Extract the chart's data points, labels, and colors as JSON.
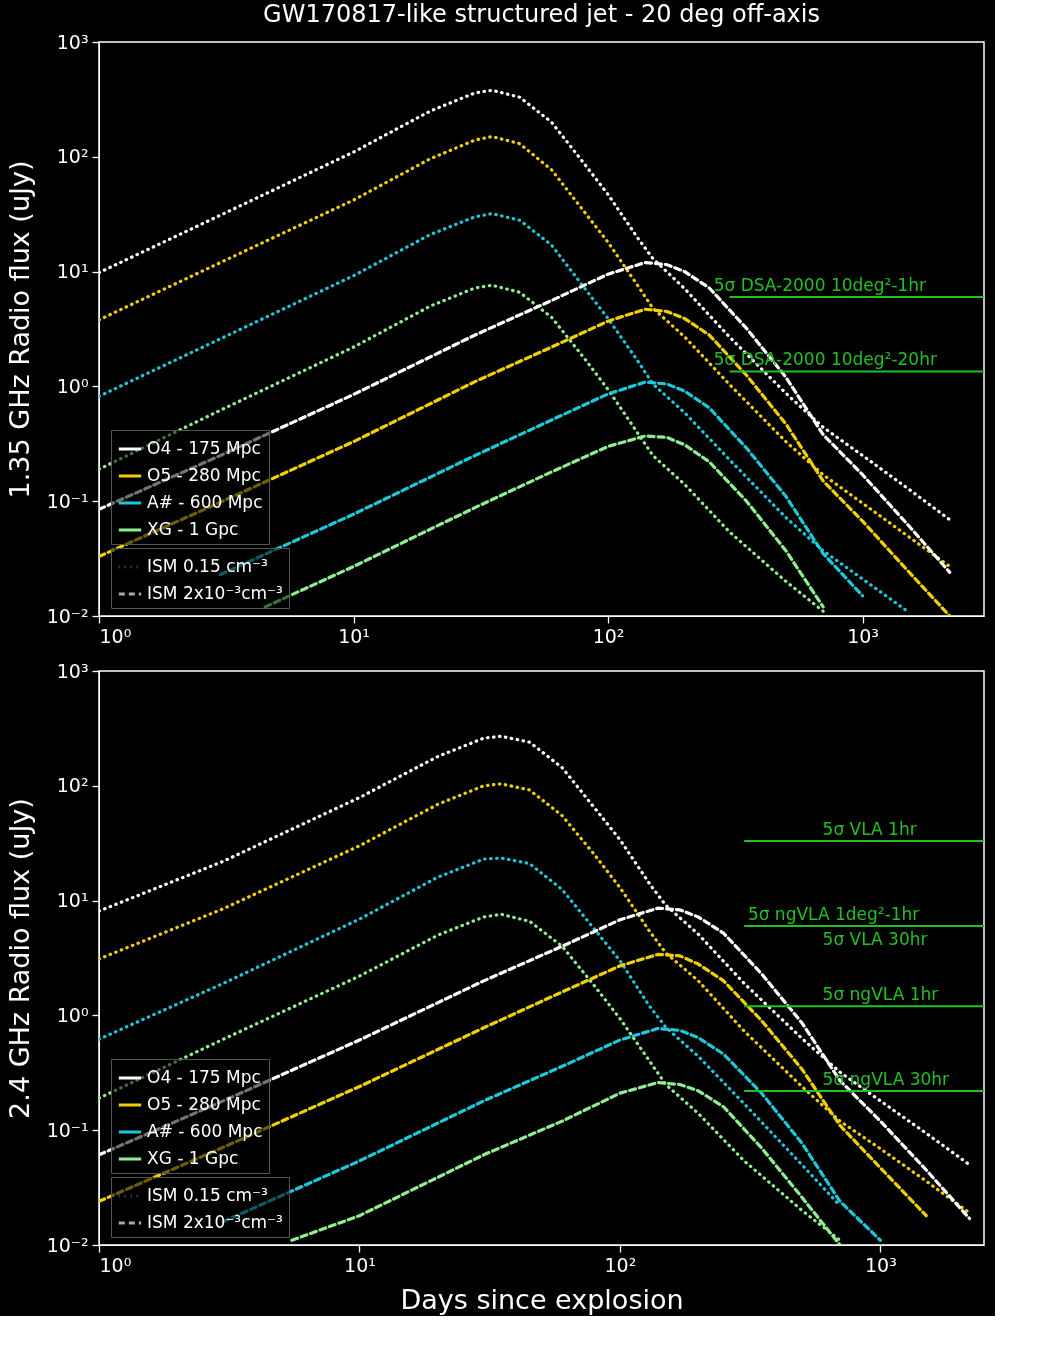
{
  "chart_data": [
    {
      "type": "line",
      "title": "GW170817-like structured jet - 20 deg off-axis",
      "ylabel": "1.35 GHz Radio flux (uJy)",
      "log": "xy",
      "grid": false,
      "legend": "bottom left",
      "xlim": [
        1,
        3000
      ],
      "ylim": [
        0.01,
        1000
      ],
      "xticks": [
        {
          "value": 1,
          "label": "10⁰"
        },
        {
          "value": 10,
          "label": "10¹"
        },
        {
          "value": 100,
          "label": "10²"
        },
        {
          "value": 1000,
          "label": "10³"
        }
      ],
      "yticks": [
        {
          "value": 0.01,
          "label": "10⁻²"
        },
        {
          "value": 0.1,
          "label": "10⁻¹"
        },
        {
          "value": 1,
          "label": "10⁰"
        },
        {
          "value": 10,
          "label": "10¹"
        },
        {
          "value": 100,
          "label": "10²"
        },
        {
          "value": 1000,
          "label": "10³"
        }
      ],
      "series": [
        {
          "name": "O4 - 175 Mpc",
          "color": "#ffffff",
          "line_style": "dotted",
          "x": [
            1,
            3,
            10,
            20,
            30,
            35,
            45,
            60,
            80,
            100,
            130,
            150,
            200,
            300,
            500,
            700,
            1000,
            1500,
            2200
          ],
          "values": [
            9.8,
            31,
            110,
            250,
            360,
            380,
            330,
            200,
            89,
            47,
            20,
            13,
            7.1,
            2.7,
            0.87,
            0.44,
            0.25,
            0.13,
            0.069
          ]
        },
        {
          "name": "O5 - 280 Mpc",
          "color": "#f2d000",
          "line_style": "dotted",
          "x": [
            1,
            3,
            10,
            20,
            30,
            35,
            45,
            60,
            80,
            100,
            130,
            150,
            200,
            300,
            500,
            700,
            1000,
            1500,
            2200
          ],
          "values": [
            3.8,
            12,
            42,
            96,
            140,
            150,
            130,
            77,
            34,
            18,
            7.7,
            4.8,
            2.7,
            1.04,
            0.33,
            0.17,
            0.096,
            0.05,
            0.027
          ]
        },
        {
          "name": "A# - 600 Mpc",
          "color": "#1ec8d8",
          "line_style": "dotted",
          "x": [
            1,
            3,
            10,
            20,
            30,
            35,
            45,
            60,
            80,
            100,
            130,
            150,
            200,
            300,
            500,
            700,
            1000,
            1500
          ],
          "values": [
            0.82,
            2.6,
            9.2,
            21,
            30,
            32,
            28,
            17,
            7.4,
            3.9,
            1.7,
            1.05,
            0.59,
            0.23,
            0.072,
            0.037,
            0.021,
            0.011
          ]
        },
        {
          "name": "XG - 1 Gpc",
          "color": "#90ee90",
          "line_style": "dotted",
          "x": [
            1,
            3,
            10,
            20,
            30,
            35,
            45,
            60,
            80,
            100,
            130,
            150,
            200,
            300,
            500,
            700
          ],
          "values": [
            0.19,
            0.62,
            2.2,
            5.0,
            7.2,
            7.6,
            6.6,
            4.0,
            1.8,
            0.94,
            0.4,
            0.25,
            0.14,
            0.054,
            0.02,
            0.011
          ]
        },
        {
          "name": "O4 - 175 Mpc",
          "color": "#ffffff",
          "line_style": "dashed",
          "x": [
            1,
            3,
            10,
            30,
            60,
            100,
            140,
            170,
            200,
            250,
            350,
            500,
            700,
            1000,
            1500,
            2200
          ],
          "values": [
            0.085,
            0.25,
            0.85,
            2.8,
            5.6,
            9.5,
            12,
            11.5,
            10,
            7.2,
            3.2,
            1.2,
            0.38,
            0.17,
            0.063,
            0.024
          ]
        },
        {
          "name": "O5 - 280 Mpc",
          "color": "#f2d000",
          "line_style": "dashed",
          "x": [
            1,
            3,
            10,
            30,
            60,
            100,
            140,
            170,
            200,
            250,
            350,
            500,
            700,
            1000,
            1500,
            2200
          ],
          "values": [
            0.033,
            0.098,
            0.33,
            1.1,
            2.2,
            3.7,
            4.7,
            4.5,
            3.9,
            2.8,
            1.25,
            0.47,
            0.15,
            0.067,
            0.025,
            0.01
          ]
        },
        {
          "name": "A# - 600 Mpc",
          "color": "#1ec8d8",
          "line_style": "dashed",
          "x": [
            3,
            10,
            30,
            60,
            100,
            140,
            170,
            200,
            250,
            350,
            500,
            700,
            1000
          ],
          "values": [
            0.023,
            0.077,
            0.25,
            0.51,
            0.86,
            1.09,
            1.05,
            0.91,
            0.65,
            0.29,
            0.11,
            0.035,
            0.015
          ]
        },
        {
          "name": "XG - 1 Gpc",
          "color": "#90ee90",
          "line_style": "dashed",
          "x": [
            4.5,
            10,
            30,
            60,
            100,
            140,
            170,
            200,
            250,
            350,
            500,
            700
          ],
          "values": [
            0.012,
            0.027,
            0.088,
            0.18,
            0.3,
            0.37,
            0.36,
            0.31,
            0.22,
            0.1,
            0.037,
            0.012
          ]
        },
        {
          "name": "ISM 0.15 cm⁻³",
          "color": "#aaaaaa",
          "line_style": "dotted"
        },
        {
          "name": "ISM 2x10⁻³cm⁻³",
          "color": "#aaaaaa",
          "line_style": "dashed"
        },
        {
          "color": "#22c022",
          "line_style": "solid",
          "x": [
            300,
            3000
          ],
          "values": [
            6.0,
            6.0
          ]
        },
        {
          "color": "#22c022",
          "line_style": "solid",
          "x": [
            300,
            3000
          ],
          "values": [
            1.35,
            1.35
          ]
        }
      ],
      "annotations": [
        {
          "text": "5σ DSA-2000 10deg²-1hr",
          "x": 260,
          "y": 6.0
        },
        {
          "text": "5σ DSA-2000 10deg²-20hr",
          "x": 260,
          "y": 1.35
        }
      ]
    },
    {
      "type": "line",
      "xlabel": "Days since explosion",
      "ylabel": "2.4 GHz Radio flux (uJy)",
      "log": "xy",
      "grid": false,
      "legend": "bottom left",
      "xlim": [
        1,
        2500
      ],
      "ylim": [
        0.01,
        1000
      ],
      "xticks": [
        {
          "value": 1,
          "label": "10⁰"
        },
        {
          "value": 10,
          "label": "10¹"
        },
        {
          "value": 100,
          "label": "10²"
        },
        {
          "value": 1000,
          "label": "10³"
        }
      ],
      "yticks": [
        {
          "value": 0.01,
          "label": "10⁻²"
        },
        {
          "value": 0.1,
          "label": "10⁻¹"
        },
        {
          "value": 1,
          "label": "10⁰"
        },
        {
          "value": 10,
          "label": "10¹"
        },
        {
          "value": 100,
          "label": "10²"
        },
        {
          "value": 1000,
          "label": "10³"
        }
      ],
      "series": [
        {
          "name": "O4 - 175 Mpc",
          "color": "#ffffff",
          "line_style": "dotted",
          "x": [
            1,
            3,
            10,
            20,
            30,
            35,
            45,
            60,
            80,
            100,
            130,
            150,
            200,
            300,
            500,
            700,
            1000,
            1500,
            2200
          ],
          "values": [
            8.1,
            22,
            79,
            180,
            260,
            270,
            240,
            144,
            64,
            34,
            14,
            9.1,
            5.1,
            1.9,
            0.63,
            0.32,
            0.18,
            0.094,
            0.05
          ]
        },
        {
          "name": "O5 - 280 Mpc",
          "color": "#f2d000",
          "line_style": "dotted",
          "x": [
            1,
            3,
            10,
            20,
            30,
            35,
            45,
            60,
            80,
            100,
            130,
            150,
            200,
            300,
            500,
            700,
            1000,
            1500,
            2200
          ],
          "values": [
            3.1,
            8.5,
            30,
            69,
            100,
            104,
            92,
            55,
            25,
            13,
            5.4,
            3.5,
            2.0,
            0.73,
            0.24,
            0.12,
            0.069,
            0.036,
            0.019
          ]
        },
        {
          "name": "A# - 600 Mpc",
          "color": "#1ec8d8",
          "line_style": "dotted",
          "x": [
            1,
            3,
            10,
            20,
            30,
            35,
            45,
            60,
            80,
            100,
            130,
            150,
            200,
            300,
            500,
            700
          ],
          "values": [
            0.62,
            1.9,
            6.9,
            16,
            23,
            23.5,
            21,
            12.5,
            5.6,
            3.0,
            1.2,
            0.79,
            0.44,
            0.17,
            0.05,
            0.022
          ]
        },
        {
          "name": "XG - 1 Gpc",
          "color": "#90ee90",
          "line_style": "dotted",
          "x": [
            1,
            3,
            10,
            20,
            30,
            35,
            45,
            60,
            80,
            100,
            130,
            150,
            200,
            300,
            500,
            700
          ],
          "values": [
            0.19,
            0.62,
            2.2,
            5.0,
            7.2,
            7.6,
            6.6,
            4.0,
            1.8,
            0.94,
            0.4,
            0.25,
            0.14,
            0.054,
            0.02,
            0.011
          ]
        },
        {
          "name": "O4 - 175 Mpc",
          "color": "#ffffff",
          "line_style": "dashed",
          "x": [
            1,
            3,
            10,
            30,
            60,
            100,
            140,
            170,
            200,
            250,
            350,
            500,
            700,
            1000,
            1500,
            2200
          ],
          "values": [
            0.061,
            0.18,
            0.61,
            2.0,
            4.0,
            6.8,
            8.6,
            8.3,
            7.2,
            5.2,
            2.3,
            0.86,
            0.27,
            0.12,
            0.045,
            0.017
          ]
        },
        {
          "name": "O5 - 280 Mpc",
          "color": "#f2d000",
          "line_style": "dashed",
          "x": [
            1,
            3,
            10,
            30,
            60,
            100,
            140,
            170,
            200,
            250,
            350,
            500,
            700,
            1000,
            1500
          ],
          "values": [
            0.024,
            0.071,
            0.24,
            0.78,
            1.6,
            2.7,
            3.4,
            3.3,
            2.8,
            2.0,
            0.9,
            0.34,
            0.11,
            0.047,
            0.018
          ]
        },
        {
          "name": "A# - 600 Mpc",
          "color": "#1ec8d8",
          "line_style": "dashed",
          "x": [
            3,
            10,
            30,
            60,
            100,
            140,
            170,
            200,
            250,
            350,
            500,
            700,
            1000
          ],
          "values": [
            0.016,
            0.054,
            0.18,
            0.36,
            0.61,
            0.77,
            0.74,
            0.64,
            0.46,
            0.21,
            0.077,
            0.024,
            0.011
          ]
        },
        {
          "name": "XG - 1 Gpc",
          "color": "#90ee90",
          "line_style": "dashed",
          "x": [
            5.5,
            10,
            30,
            60,
            100,
            140,
            170,
            200,
            250,
            350,
            500,
            700
          ],
          "values": [
            0.011,
            0.018,
            0.061,
            0.12,
            0.21,
            0.26,
            0.25,
            0.22,
            0.16,
            0.07,
            0.026,
            0.01
          ]
        },
        {
          "name": "ISM 0.15 cm⁻³",
          "color": "#aaaaaa",
          "line_style": "dotted"
        },
        {
          "name": "ISM 2x10⁻³cm⁻³",
          "color": "#aaaaaa",
          "line_style": "dashed"
        },
        {
          "color": "#22c022",
          "line_style": "solid",
          "x": [
            300,
            2500
          ],
          "values": [
            33,
            33
          ]
        },
        {
          "color": "#22c022",
          "line_style": "solid",
          "x": [
            300,
            2500
          ],
          "values": [
            6.0,
            6.0
          ]
        },
        {
          "color": "#22c022",
          "line_style": "solid",
          "x": [
            300,
            2500
          ],
          "values": [
            1.2,
            1.2
          ]
        },
        {
          "color": "#22c022",
          "line_style": "solid",
          "x": [
            300,
            2500
          ],
          "values": [
            0.22,
            0.22
          ]
        }
      ],
      "annotations": [
        {
          "text": "5σ VLA 1hr",
          "x": 600,
          "y": 33
        },
        {
          "text": "5σ ngVLA 1deg²-1hr",
          "x": 310,
          "y": 6.0
        },
        {
          "text": "5σ VLA 30hr",
          "x": 600,
          "y": 6.0
        },
        {
          "text": "5σ ngVLA 1hr",
          "x": 600,
          "y": 1.2
        },
        {
          "text": "5σ ngVLA 30hr",
          "x": 600,
          "y": 0.22
        }
      ]
    }
  ]
}
